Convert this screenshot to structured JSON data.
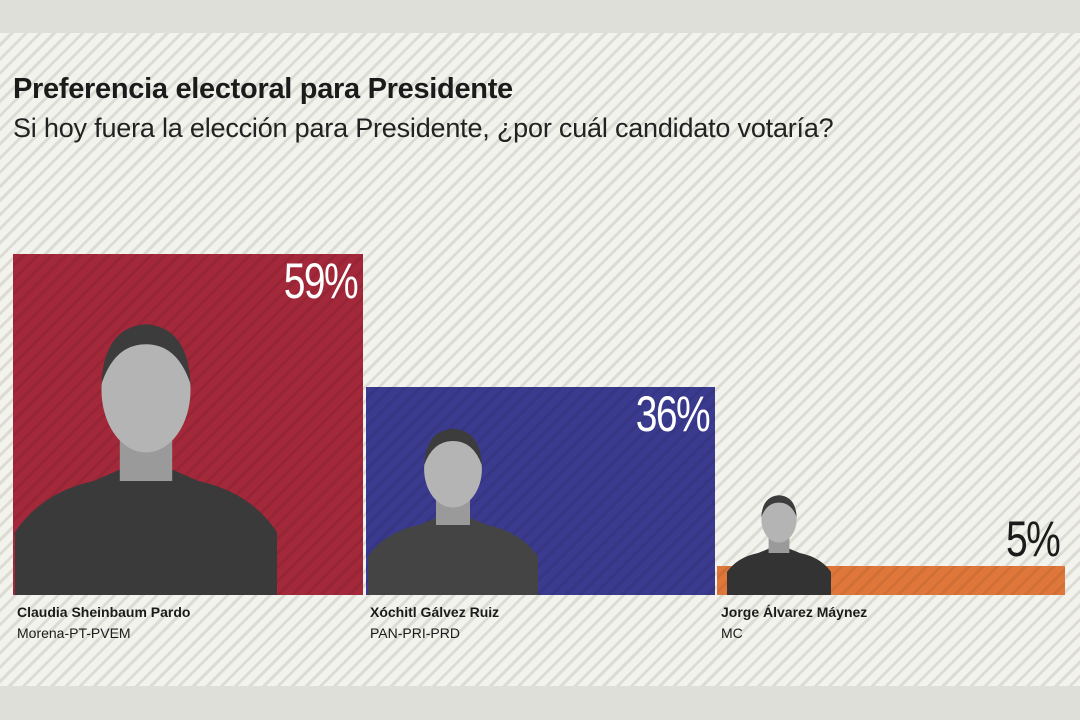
{
  "chart_data": {
    "type": "bar",
    "title": "Preferencia electoral para Presidente",
    "subtitle": "Si hoy fuera la elección para Presidente, ¿por cuál candidato votaría?",
    "categories": [
      "Claudia Sheinbaum Pardo",
      "Xóchitl Gálvez Ruiz",
      "Jorge Álvarez Máynez"
    ],
    "parties": [
      "Morena-PT-PVEM",
      "PAN-PRI-PRD",
      "MC"
    ],
    "values": [
      59,
      36,
      5
    ],
    "value_labels": [
      "59%",
      "36%",
      "5%"
    ],
    "colors": [
      "#a2283a",
      "#3a3a8e",
      "#e0773a"
    ],
    "ylim": [
      0,
      100
    ],
    "grid": false,
    "legend": "none"
  }
}
